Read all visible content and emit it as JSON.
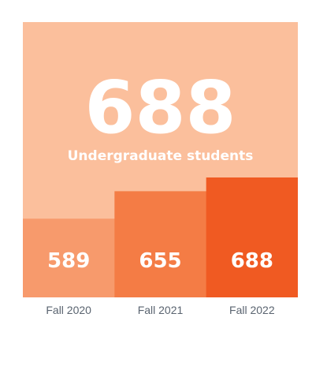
{
  "headline": {
    "value": "688",
    "label": "Undergraduate students"
  },
  "colors": {
    "background_panel": "#fbbf9c",
    "bars": [
      "#f79a6c",
      "#f47c45",
      "#f05a22"
    ],
    "category_text": "#5a6470"
  },
  "chart_data": {
    "type": "bar",
    "categories": [
      "Fall 2020",
      "Fall 2021",
      "Fall 2022"
    ],
    "values": [
      589,
      655,
      688
    ],
    "data_labels": [
      "589",
      "655",
      "688"
    ],
    "title": "",
    "xlabel": "",
    "ylabel": "",
    "grid": false,
    "legend": "none"
  }
}
